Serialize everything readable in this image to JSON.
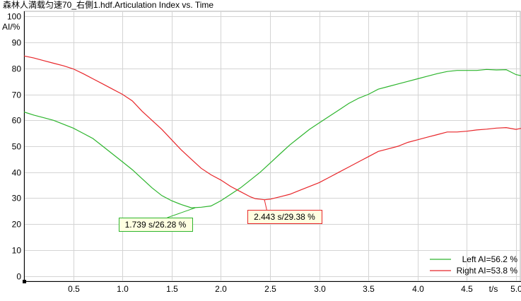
{
  "chart_data": {
    "type": "line",
    "title": "森林人満载匀速70_右側1.hdf.Articulation Index vs. Time",
    "xlabel": "t/s",
    "ylabel": "AI/%",
    "xlim": [
      0,
      5.05
    ],
    "ylim": [
      -2,
      102
    ],
    "x_ticks": [
      "0.5",
      "1.0",
      "1.5",
      "2.0",
      "2.5",
      "3.0",
      "3.5",
      "4.0",
      "4.5",
      "5.0"
    ],
    "y_ticks": [
      "0",
      "10",
      "20",
      "30",
      "40",
      "50",
      "60",
      "70",
      "80",
      "90",
      "100"
    ],
    "grid": true,
    "legend_position": "bottom-right",
    "series": [
      {
        "name": "Left AI=56.2 %",
        "color": "#2db52d",
        "x": [
          0,
          0.1,
          0.2,
          0.3,
          0.4,
          0.5,
          0.6,
          0.7,
          0.8,
          0.9,
          1.0,
          1.1,
          1.2,
          1.3,
          1.4,
          1.5,
          1.6,
          1.7,
          1.8,
          1.9,
          2.0,
          2.1,
          2.2,
          2.3,
          2.4,
          2.5,
          2.6,
          2.7,
          2.8,
          2.9,
          3.0,
          3.1,
          3.2,
          3.3,
          3.4,
          3.5,
          3.6,
          3.7,
          3.8,
          3.9,
          4.0,
          4.1,
          4.2,
          4.3,
          4.4,
          4.5,
          4.6,
          4.7,
          4.8,
          4.9,
          5.0,
          5.05
        ],
        "y": [
          63.2,
          62,
          61,
          60,
          58.5,
          57,
          55,
          53,
          50,
          47,
          44,
          41,
          37.5,
          34,
          31,
          29,
          27.5,
          26.3,
          26.5,
          27,
          29,
          31.5,
          34,
          37,
          40,
          43.5,
          47,
          50.5,
          53.5,
          56.5,
          59,
          61.5,
          64,
          66.5,
          68.5,
          70,
          72,
          73,
          74,
          75,
          76,
          77,
          78,
          78.8,
          79.2,
          79.2,
          79.2,
          79.6,
          79.4,
          79.5,
          77.6,
          77.2
        ]
      },
      {
        "name": "Right AI=53.8 %",
        "color": "#e8262a",
        "x": [
          0,
          0.1,
          0.2,
          0.3,
          0.4,
          0.5,
          0.6,
          0.7,
          0.8,
          0.9,
          1.0,
          1.1,
          1.2,
          1.3,
          1.4,
          1.5,
          1.6,
          1.7,
          1.8,
          1.9,
          2.0,
          2.1,
          2.2,
          2.3,
          2.35,
          2.443,
          2.5,
          2.6,
          2.7,
          2.8,
          2.9,
          3.0,
          3.1,
          3.2,
          3.3,
          3.4,
          3.5,
          3.6,
          3.7,
          3.8,
          3.9,
          4.0,
          4.1,
          4.2,
          4.3,
          4.4,
          4.5,
          4.6,
          4.7,
          4.8,
          4.9,
          5.0,
          5.05
        ],
        "y": [
          84.8,
          84,
          83,
          82,
          81,
          79.8,
          78,
          76,
          74,
          72,
          70,
          67.5,
          63.5,
          60,
          56.5,
          52.5,
          48.5,
          45,
          41.5,
          39,
          37,
          34.5,
          32.5,
          30.5,
          29.8,
          29.38,
          29.6,
          30.5,
          31.5,
          33,
          34.5,
          36,
          38,
          40,
          42,
          44,
          46,
          48,
          49,
          50,
          51.5,
          52.5,
          53.5,
          54.5,
          55.5,
          55.5,
          55.8,
          56.3,
          56.6,
          57,
          57.2,
          56.5,
          56.9
        ]
      }
    ],
    "annotations": [
      {
        "text": "1.739 s/26.28 %",
        "x": 1.739,
        "y": 26.28,
        "series": 0
      },
      {
        "text": "2.443 s/29.38 %",
        "x": 2.443,
        "y": 29.38,
        "series": 1
      }
    ]
  }
}
